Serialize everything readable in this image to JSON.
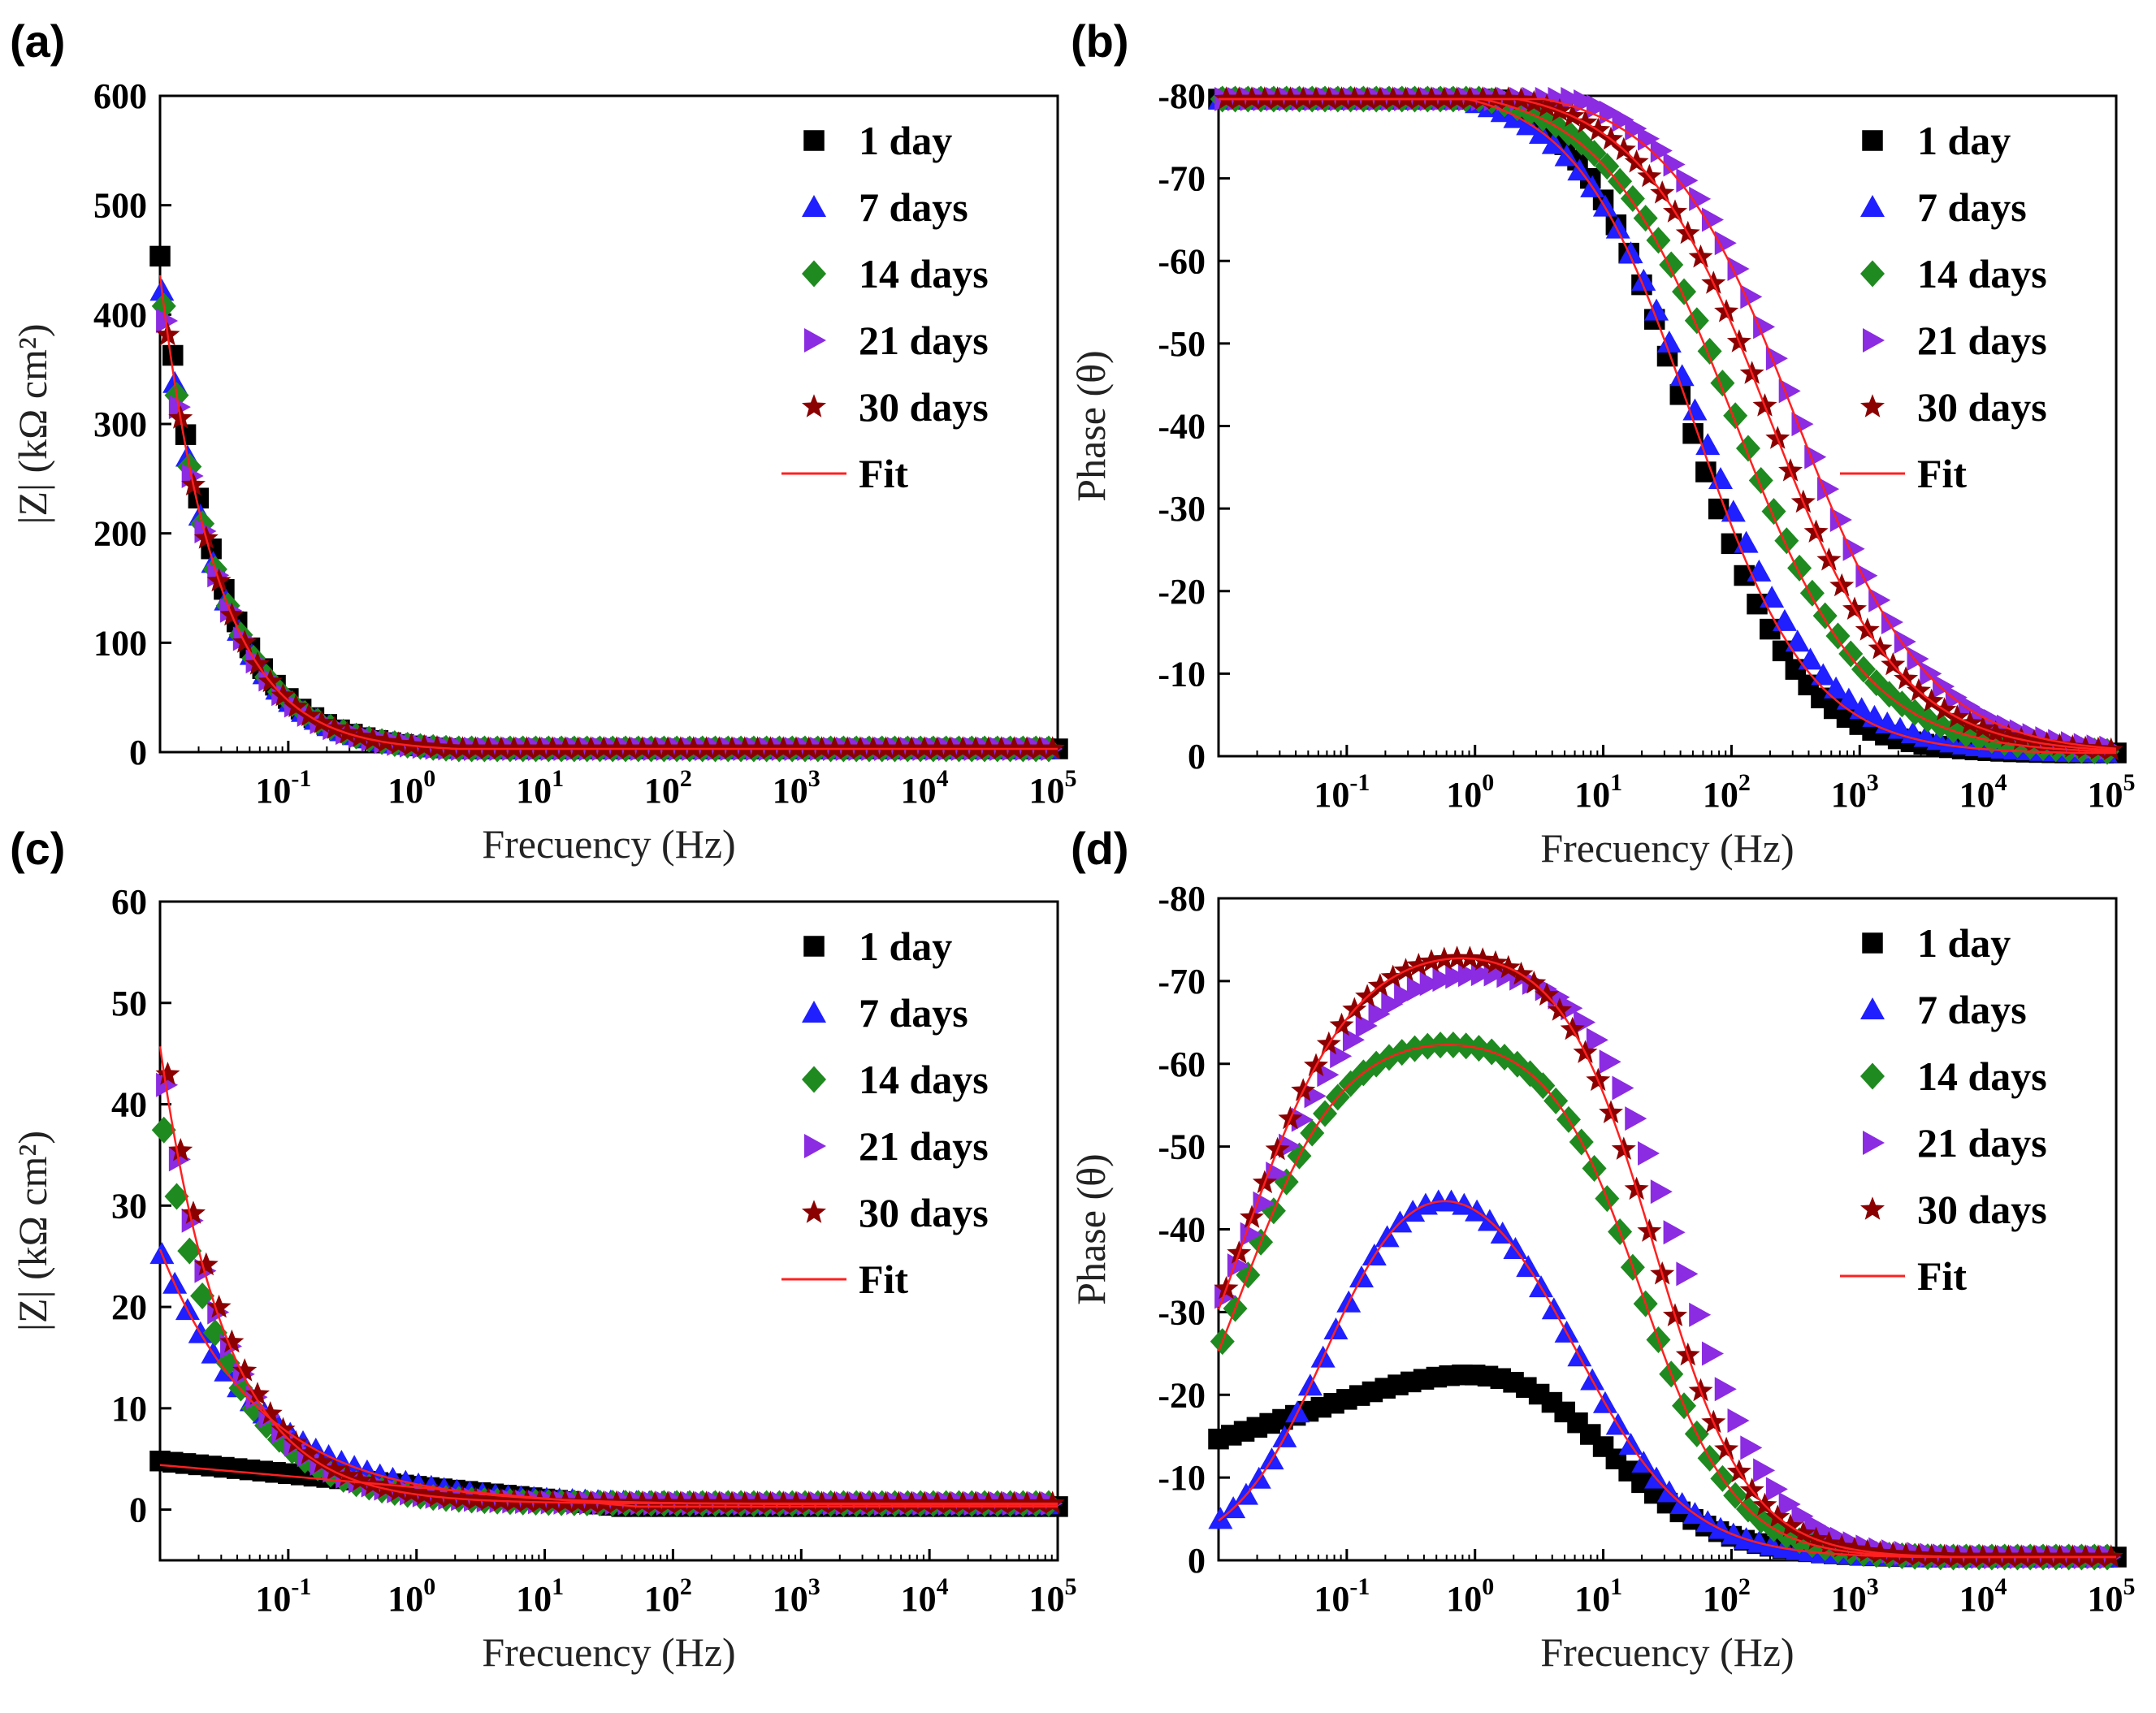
{
  "chart_data": [
    {
      "panel": "(a)",
      "type": "scatter",
      "xscale": "log",
      "xlim": [
        0.01,
        100000
      ],
      "ylim": [
        0,
        600
      ],
      "yticks": [
        0,
        100,
        200,
        300,
        400,
        500,
        600
      ],
      "xlabel": "Frecuency (Hz)",
      "ylabel": "|Z| (kΩ cm²)",
      "legend_location": "top-right",
      "series": [
        {
          "name": "1 day",
          "marker": "square",
          "color": "#000000",
          "model": {
            "kind": "magnitude",
            "R": 0.5,
            "P": 5.2,
            "alpha": 0.97,
            "k": 0.0
          }
        },
        {
          "name": "7 days",
          "marker": "triangle-up",
          "color": "#1f1fff",
          "model": {
            "kind": "magnitude",
            "R": 0.5,
            "P": 5.0,
            "alpha": 0.97,
            "k": 0.0
          }
        },
        {
          "name": "14 days",
          "marker": "diamond",
          "color": "#1f8a1f",
          "model": {
            "kind": "magnitude",
            "R": 0.5,
            "P": 5.0,
            "alpha": 0.97,
            "k": 0.0
          }
        },
        {
          "name": "21 days",
          "marker": "triangle-right",
          "color": "#8b2be2",
          "model": {
            "kind": "magnitude",
            "R": 0.5,
            "P": 5.0,
            "alpha": 0.97,
            "k": 0.0
          }
        },
        {
          "name": "30 days",
          "marker": "star",
          "color": "#8b0000",
          "model": {
            "kind": "magnitude",
            "R": 0.5,
            "P": 5.0,
            "alpha": 0.97,
            "k": 0.0
          }
        }
      ],
      "fit": {
        "name": "Fit",
        "color": "#ff2020",
        "curves": [
          {
            "kind": "magnitude",
            "R": 0.5,
            "P": 5.0,
            "alpha": 0.97,
            "k": 0.0
          }
        ]
      }
    },
    {
      "panel": "(b)",
      "type": "scatter",
      "xscale": "log",
      "xlim": [
        0.01,
        100000
      ],
      "ylim": [
        0,
        -80
      ],
      "yticks": [
        0,
        -10,
        -20,
        -30,
        -40,
        -50,
        -60,
        -70,
        -80
      ],
      "xlabel": "Frecuency (Hz)",
      "ylabel": "Phase (θ)",
      "legend_location": "top-right",
      "series": [
        {
          "name": "1 day",
          "marker": "square",
          "color": "#000000",
          "model": {
            "kind": "phase",
            "A": 82,
            "c": 45,
            "n": 1.0,
            "l": 0.0,
            "k": 0.0
          }
        },
        {
          "name": "7 days",
          "marker": "triangle-up",
          "color": "#1f1fff",
          "model": {
            "kind": "phase",
            "A": 81,
            "c": 55,
            "n": 0.9,
            "l": 0.0,
            "k": 0.0
          }
        },
        {
          "name": "14 days",
          "marker": "diamond",
          "color": "#1f8a1f",
          "model": {
            "kind": "phase",
            "A": 81,
            "c": 110,
            "n": 0.85,
            "l": 0.0,
            "k": 0.0
          }
        },
        {
          "name": "21 days",
          "marker": "triangle-right",
          "color": "#8b2be2",
          "model": {
            "kind": "phase",
            "A": 82,
            "c": 330,
            "n": 0.85,
            "l": 0.0,
            "k": 0.0
          }
        },
        {
          "name": "30 days",
          "marker": "star",
          "color": "#8b0000",
          "model": {
            "kind": "phase",
            "A": 81,
            "c": 200,
            "n": 0.85,
            "l": 0.0,
            "k": 0.0
          }
        }
      ],
      "fit": {
        "name": "Fit",
        "color": "#ff2020",
        "curves": [
          {
            "kind": "phase",
            "A": 81,
            "c": 50,
            "n": 0.95,
            "l": 0.0,
            "k": 0.0
          },
          {
            "kind": "phase",
            "A": 81,
            "c": 105,
            "n": 0.85,
            "l": 0.0,
            "k": 0.0
          },
          {
            "kind": "phase",
            "A": 81,
            "c": 200,
            "n": 0.85,
            "l": 0.0,
            "k": 0.0
          },
          {
            "kind": "phase",
            "A": 81,
            "c": 320,
            "n": 0.85,
            "l": 0.0,
            "k": 0.0
          }
        ]
      }
    },
    {
      "panel": "(c)",
      "type": "scatter",
      "xscale": "log",
      "xlim": [
        0.01,
        100000
      ],
      "ylim": [
        -5,
        60
      ],
      "yticks": [
        0,
        10,
        20,
        30,
        40,
        50,
        60
      ],
      "xlabel": "Frecuency (Hz)",
      "ylabel": "|Z| (kΩ cm²)",
      "legend_location": "top-right",
      "series": [
        {
          "name": "1 day",
          "marker": "square",
          "color": "#000000",
          "model": {
            "kind": "log",
            "a": 2.3,
            "b": -1.25,
            "lo": 0.3
          }
        },
        {
          "name": "7 days",
          "marker": "triangle-up",
          "color": "#1f1fff",
          "model": {
            "kind": "magnitude",
            "R": 0.5,
            "P": 2.0,
            "alpha": 0.55,
            "k": 0.0
          }
        },
        {
          "name": "14 days",
          "marker": "diamond",
          "color": "#1f8a1f",
          "model": {
            "kind": "magnitude",
            "R": 0.6,
            "P": 0.78,
            "alpha": 0.85,
            "k": 0.0
          }
        },
        {
          "name": "21 days",
          "marker": "triangle-right",
          "color": "#8b2be2",
          "model": {
            "kind": "magnitude",
            "R": 0.6,
            "P": 0.9,
            "alpha": 0.85,
            "k": 0.0
          }
        },
        {
          "name": "30 days",
          "marker": "star",
          "color": "#8b0000",
          "model": {
            "kind": "magnitude",
            "R": 0.6,
            "P": 0.95,
            "alpha": 0.85,
            "k": 0.0
          }
        }
      ],
      "fit": {
        "name": "Fit",
        "color": "#ff2020",
        "curves": [
          {
            "kind": "log",
            "a": 2.2,
            "b": -1.1,
            "lo": 0.3
          },
          {
            "kind": "magnitude",
            "R": 0.5,
            "P": 2.0,
            "alpha": 0.55,
            "k": 0.0
          },
          {
            "kind": "magnitude",
            "R": 0.6,
            "P": 0.9,
            "alpha": 0.85,
            "k": 0.0
          }
        ]
      }
    },
    {
      "panel": "(d)",
      "type": "scatter",
      "xscale": "log",
      "xlim": [
        0.01,
        100000
      ],
      "ylim": [
        0,
        -80
      ],
      "yticks": [
        0,
        -10,
        -20,
        -30,
        -40,
        -50,
        -60,
        -70,
        -80
      ],
      "xlabel": "Frecuency (Hz)",
      "ylabel": "Phase (θ)",
      "legend_location": "top-right",
      "series": [
        {
          "name": "1 day",
          "marker": "square",
          "color": "#000000",
          "model": {
            "kind": "phase",
            "A": 48,
            "c": 8,
            "n": 1.0,
            "l": 0.7,
            "k": 0.2
          }
        },
        {
          "name": "7 days",
          "marker": "triangle-up",
          "color": "#1f1fff",
          "model": {
            "kind": "phase",
            "A": 51,
            "c": 6,
            "n": 1.0,
            "l": 0.07,
            "k": 1.2
          }
        },
        {
          "name": "14 days",
          "marker": "diamond",
          "color": "#1f8a1f",
          "model": {
            "kind": "phase",
            "A": 64,
            "c": 20,
            "n": 1.2,
            "l": 0.015,
            "k": 1.1
          }
        },
        {
          "name": "21 days",
          "marker": "triangle-right",
          "color": "#8b2be2",
          "model": {
            "kind": "phase",
            "A": 73,
            "c": 40,
            "n": 1.2,
            "l": 0.015,
            "k": 0.9
          }
        },
        {
          "name": "30 days",
          "marker": "star",
          "color": "#8b0000",
          "model": {
            "kind": "phase",
            "A": 75,
            "c": 25,
            "n": 1.2,
            "l": 0.015,
            "k": 1.0
          }
        }
      ],
      "fit": {
        "name": "Fit",
        "color": "#ff2020",
        "curves": [
          {
            "kind": "phase",
            "A": 51,
            "c": 6,
            "n": 1.0,
            "l": 0.07,
            "k": 1.2
          },
          {
            "kind": "phase",
            "A": 64,
            "c": 20,
            "n": 1.2,
            "l": 0.015,
            "k": 1.1
          },
          {
            "kind": "phase",
            "A": 75,
            "c": 25,
            "n": 1.2,
            "l": 0.015,
            "k": 1.0
          }
        ]
      }
    }
  ]
}
